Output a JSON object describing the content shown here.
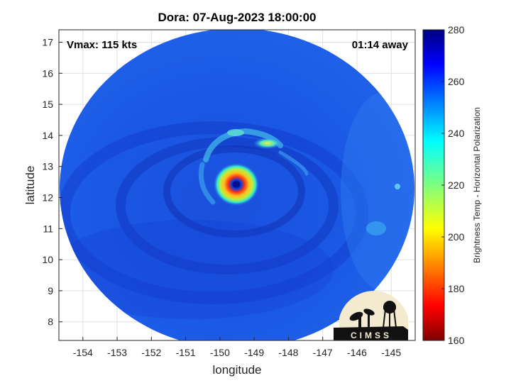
{
  "title": "Dora: 07-Aug-2023 18:00:00",
  "vmax_label": "Vmax: 115 kts",
  "away_label": "01:14 away",
  "axes": {
    "xlabel": "longitude",
    "ylabel": "latitude",
    "xlim": [
      -154.7,
      -144.3
    ],
    "ylim": [
      7.4,
      17.4
    ],
    "xticks": [
      "-154",
      "-153",
      "-152",
      "-151",
      "-150",
      "-149",
      "-148",
      "-147",
      "-146",
      "-145"
    ],
    "yticks": [
      "8",
      "9",
      "10",
      "11",
      "12",
      "13",
      "14",
      "15",
      "16",
      "17"
    ],
    "grid": true
  },
  "colorbar": {
    "label": "Brightness Temp - Horizontal Polarization",
    "ticks": [
      "160",
      "180",
      "200",
      "220",
      "240",
      "260",
      "280"
    ],
    "range": [
      160,
      280
    ],
    "colormap": "jet"
  },
  "storm_center": {
    "lon": -149.5,
    "lat": 12.35
  },
  "logo": {
    "text": "CIMSS"
  },
  "colors": {
    "background_field": "#1e5ee8",
    "eyewall": "#f0c020",
    "eye": "#0000a0"
  }
}
